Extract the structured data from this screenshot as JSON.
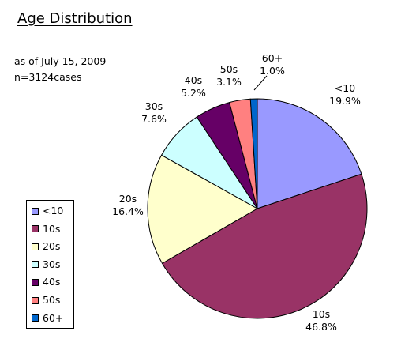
{
  "title": "Age Distribution",
  "notes": {
    "date": "as of July 15, 2009",
    "count": "n=3124cases"
  },
  "chart_data": {
    "type": "pie",
    "title": "Age Distribution",
    "categories": [
      "<10",
      "10s",
      "20s",
      "30s",
      "40s",
      "50s",
      "60+"
    ],
    "values": [
      19.9,
      46.8,
      16.4,
      7.6,
      5.2,
      3.1,
      1.0
    ],
    "value_labels": [
      "19.9%",
      "46.8%",
      "16.4%",
      "7.6%",
      "5.2%",
      "3.1%",
      "1.0%"
    ],
    "colors": [
      "#9999FF",
      "#993366",
      "#FFFFCC",
      "#CCFFFF",
      "#660066",
      "#FF8080",
      "#0066CC"
    ],
    "start_angle_deg": 90,
    "direction": "clockwise",
    "legend_position": "left"
  }
}
